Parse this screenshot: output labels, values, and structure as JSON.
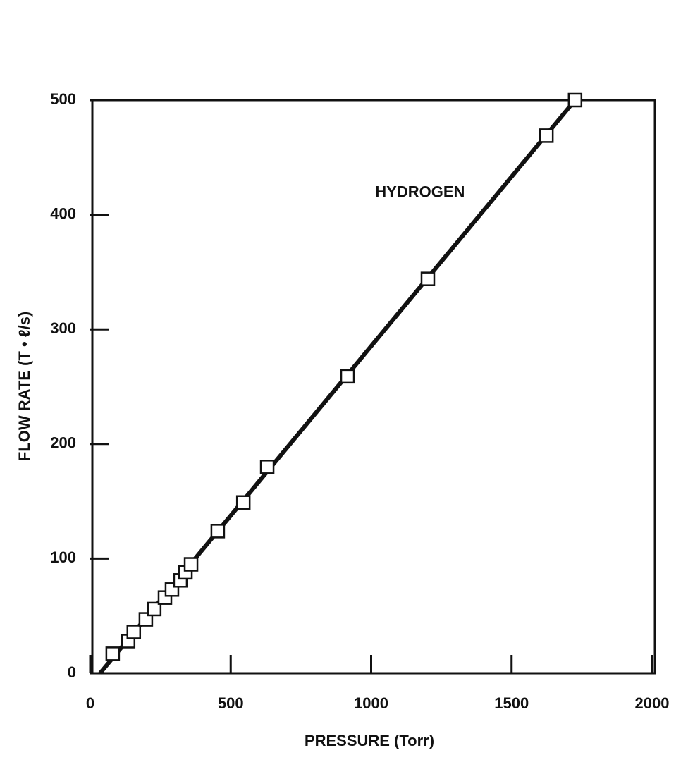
{
  "chart_data": {
    "type": "scatter",
    "x_label": "PRESSURE (Torr)",
    "y_label": "FLOW RATE (T • ℓ/s)",
    "xlim": [
      0,
      2000
    ],
    "ylim": [
      0,
      500
    ],
    "xticks": [
      0,
      500,
      1000,
      1500,
      2000
    ],
    "yticks": [
      0,
      100,
      200,
      300,
      400,
      500
    ],
    "annotations": [
      {
        "text": "HYDROGEN",
        "x": 1174,
        "y": 419
      }
    ],
    "series": [
      {
        "style": "line",
        "color": "#111111",
        "x": [
          35,
          1726
        ],
        "values": [
          0,
          500
        ]
      },
      {
        "style": "marker",
        "color": "#111111",
        "x": [
          80,
          135,
          155,
          198,
          228,
          266,
          291,
          321,
          339,
          359,
          454,
          545,
          630,
          916,
          1202,
          1624,
          1726
        ],
        "values": [
          17,
          28,
          36,
          47,
          56,
          66,
          73,
          81,
          88,
          95,
          124,
          149,
          180,
          259,
          344,
          469,
          500
        ]
      }
    ]
  }
}
